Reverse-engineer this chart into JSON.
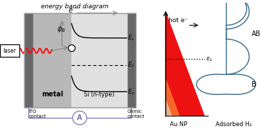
{
  "title_left": "energy band diagram",
  "bg_color": "#ffffff",
  "metal_color": "#b8b8b8",
  "dark_contact_color": "#686868",
  "circuit_color": "#7777bb",
  "laser_label": "laser",
  "metal_label": "metal",
  "si_label": "Si (n-type)",
  "ito_label": "ITO\ncontact",
  "ohmic_label": "Ohmic\ncontact",
  "A_label": "A",
  "hot_e_label": "hot e⁻",
  "aunp_label": "Au NP",
  "ads_label": "Adsorbed H₂",
  "ab_label": "AB",
  "b_label": "B",
  "curve_color": "#336688",
  "red_top": "#ff0000",
  "red_mid": "#ff6666",
  "orange_bot": "#ffaa55",
  "gray_bot": "#ccccaa"
}
